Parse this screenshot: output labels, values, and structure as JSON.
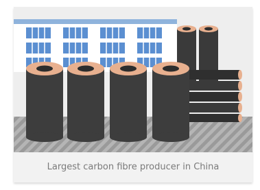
{
  "caption": "Largest carbon fibre producer in China"
}
